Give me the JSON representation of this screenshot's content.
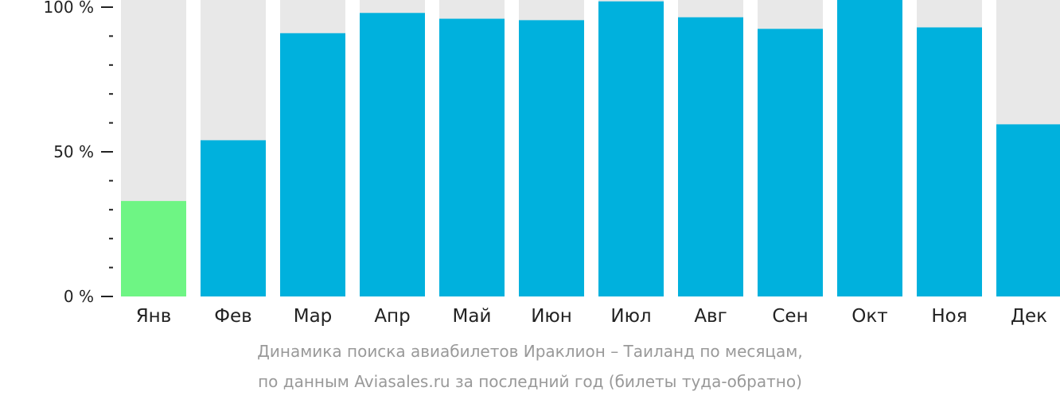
{
  "chart_data": {
    "type": "bar",
    "categories": [
      "Янв",
      "Фев",
      "Мар",
      "Апр",
      "Май",
      "Июн",
      "Июл",
      "Авг",
      "Сен",
      "Окт",
      "Ноя",
      "Дек"
    ],
    "values": [
      33,
      54,
      91,
      98,
      96,
      95.5,
      102,
      96.5,
      92.5,
      103,
      93,
      59.5
    ],
    "ylim": [
      0,
      100
    ],
    "y_ticks": [
      {
        "value": 0,
        "label": "0 %"
      },
      {
        "value": 50,
        "label": "50 %"
      },
      {
        "value": 100,
        "label": "100 %"
      }
    ],
    "y_minor_tick_step": 10,
    "colors": {
      "bar": "#00b1dd",
      "highlight_bar": "#6ef584",
      "background_bar": "#e8e8e8",
      "axis": "#222222"
    },
    "highlight_index": 0,
    "grid": false,
    "legend": "none"
  },
  "caption": {
    "line1": "Динамика поиска авиабилетов Ираклион – Таиланд по месяцам,",
    "line2": "по данным Aviasales.ru за последний год (билеты туда-обратно)"
  }
}
